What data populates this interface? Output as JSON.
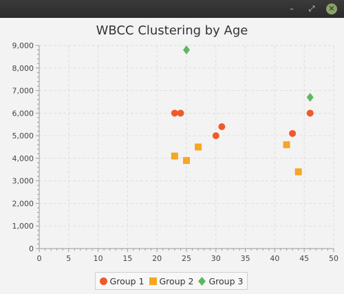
{
  "window": {
    "minimize_glyph": "–",
    "maximize_glyph": "⤢",
    "close_glyph": "✕"
  },
  "chart_data": {
    "type": "scatter",
    "title": "WBCC Clustering by Age",
    "xlabel": "",
    "ylabel": "",
    "xlim": [
      0,
      50
    ],
    "ylim": [
      0,
      9000
    ],
    "x_ticks": [
      0,
      5,
      10,
      15,
      20,
      25,
      30,
      35,
      40,
      45,
      50
    ],
    "y_ticks": [
      0,
      1000,
      2000,
      3000,
      4000,
      5000,
      6000,
      7000,
      8000,
      9000
    ],
    "y_tick_labels": [
      "0",
      "1,000",
      "2,000",
      "3,000",
      "4,000",
      "5,000",
      "6,000",
      "7,000",
      "8,000",
      "9,000"
    ],
    "grid": true,
    "legend_position": "bottom",
    "series": [
      {
        "name": "Group 1",
        "marker": "circle",
        "color": "#ee5a2a",
        "points": [
          [
            23,
            6000
          ],
          [
            24,
            6000
          ],
          [
            30,
            5000
          ],
          [
            31,
            5400
          ],
          [
            43,
            5100
          ],
          [
            46,
            6000
          ]
        ]
      },
      {
        "name": "Group 2",
        "marker": "square",
        "color": "#f5a623",
        "points": [
          [
            23,
            4100
          ],
          [
            25,
            3900
          ],
          [
            27,
            4500
          ],
          [
            42,
            4600
          ],
          [
            44,
            3400
          ]
        ]
      },
      {
        "name": "Group 3",
        "marker": "diamond",
        "color": "#5cb85c",
        "points": [
          [
            25,
            8800
          ],
          [
            46,
            6700
          ]
        ]
      }
    ]
  }
}
